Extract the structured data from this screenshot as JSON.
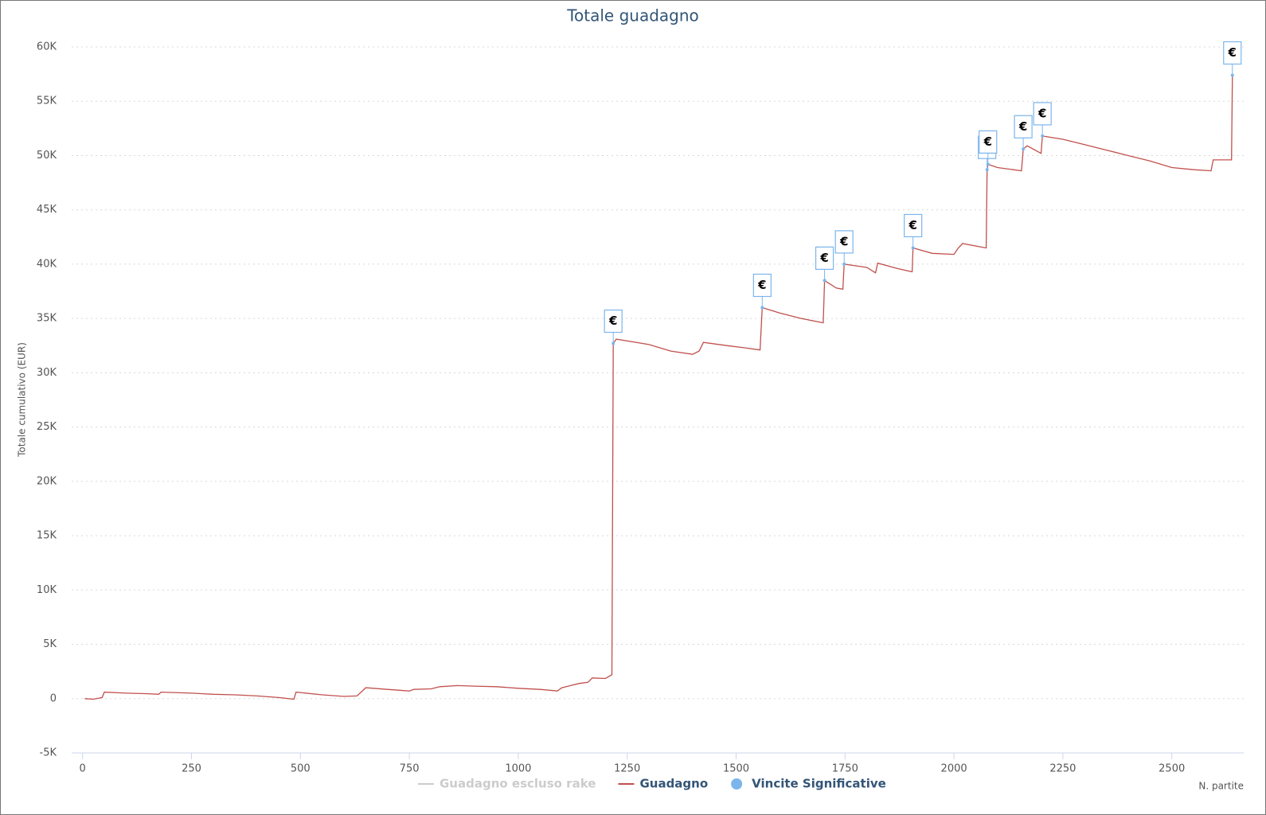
{
  "chart_data": {
    "type": "line",
    "title": "Totale guadagno",
    "y_axis_label": "Totale cumulativo (EUR)",
    "x_axis_label": "N. partite",
    "xlim": [
      -25,
      2665
    ],
    "xticks": [
      0,
      250,
      500,
      750,
      1000,
      1250,
      1500,
      1750,
      2000,
      2250,
      2500
    ],
    "ylim": [
      -5000,
      60000
    ],
    "yticks": [
      {
        "value": -5000,
        "label": "-5K"
      },
      0,
      {
        "value": 5000,
        "label": "5K"
      },
      {
        "value": 10000,
        "label": "10K"
      },
      {
        "value": 15000,
        "label": "15K"
      },
      {
        "value": 20000,
        "label": "20K"
      },
      {
        "value": 25000,
        "label": "25K"
      },
      {
        "value": 30000,
        "label": "30K"
      },
      {
        "value": 35000,
        "label": "35K"
      },
      {
        "value": 40000,
        "label": "40K"
      },
      {
        "value": 45000,
        "label": "45K"
      },
      {
        "value": 50000,
        "label": "50K"
      },
      {
        "value": 55000,
        "label": "55K"
      },
      {
        "value": 60000,
        "label": "60K"
      }
    ],
    "grid": true,
    "series": [
      {
        "name": "Guadagno escluso rake",
        "color": "#cccccc",
        "visible": false
      },
      {
        "name": "Guadagno",
        "color": "#c0504d",
        "x": [
          5,
          25,
          45,
          50,
          100,
          150,
          175,
          180,
          250,
          300,
          350,
          400,
          450,
          485,
          490,
          550,
          600,
          630,
          650,
          700,
          750,
          760,
          800,
          820,
          860,
          900,
          950,
          1000,
          1050,
          1090,
          1100,
          1120,
          1140,
          1160,
          1170,
          1200,
          1215,
          1218,
          1225,
          1300,
          1350,
          1400,
          1415,
          1425,
          1480,
          1520,
          1555,
          1560,
          1600,
          1650,
          1700,
          1703,
          1730,
          1745,
          1748,
          1800,
          1820,
          1825,
          1870,
          1904,
          1906,
          1950,
          2000,
          2010,
          2020,
          2060,
          2074,
          2076,
          2078,
          2100,
          2155,
          2159,
          2168,
          2200,
          2203,
          2250,
          2300,
          2350,
          2400,
          2450,
          2500,
          2550,
          2590,
          2595,
          2630,
          2637,
          2639
        ],
        "values": [
          0,
          -50,
          100,
          600,
          500,
          450,
          400,
          600,
          500,
          400,
          350,
          250,
          100,
          -50,
          600,
          350,
          200,
          250,
          1000,
          850,
          700,
          850,
          900,
          1100,
          1200,
          1150,
          1100,
          950,
          850,
          700,
          1000,
          1200,
          1400,
          1500,
          1900,
          1850,
          2200,
          32700,
          33100,
          32600,
          32000,
          31700,
          32000,
          32800,
          32500,
          32300,
          32100,
          36000,
          35500,
          35000,
          34600,
          38500,
          37800,
          37700,
          40000,
          39700,
          39200,
          40100,
          39600,
          39300,
          41500,
          41000,
          40900,
          41500,
          41900,
          41600,
          41500,
          48700,
          49200,
          48900,
          48600,
          50600,
          50900,
          50200,
          51800,
          51500,
          51000,
          50500,
          50000,
          49500,
          48900,
          48700,
          48600,
          49600,
          49600,
          49600,
          57400
        ]
      },
      {
        "name": "Vincite Significative",
        "color": "#7cb5ec",
        "type": "scatter",
        "flag_text": "€",
        "x": [
          1218,
          1560,
          1703,
          1748,
          1906,
          2076,
          2078,
          2159,
          2203,
          2639
        ],
        "values": [
          32700,
          36000,
          38500,
          40000,
          41500,
          48700,
          49200,
          50600,
          51800,
          57400
        ]
      }
    ]
  }
}
